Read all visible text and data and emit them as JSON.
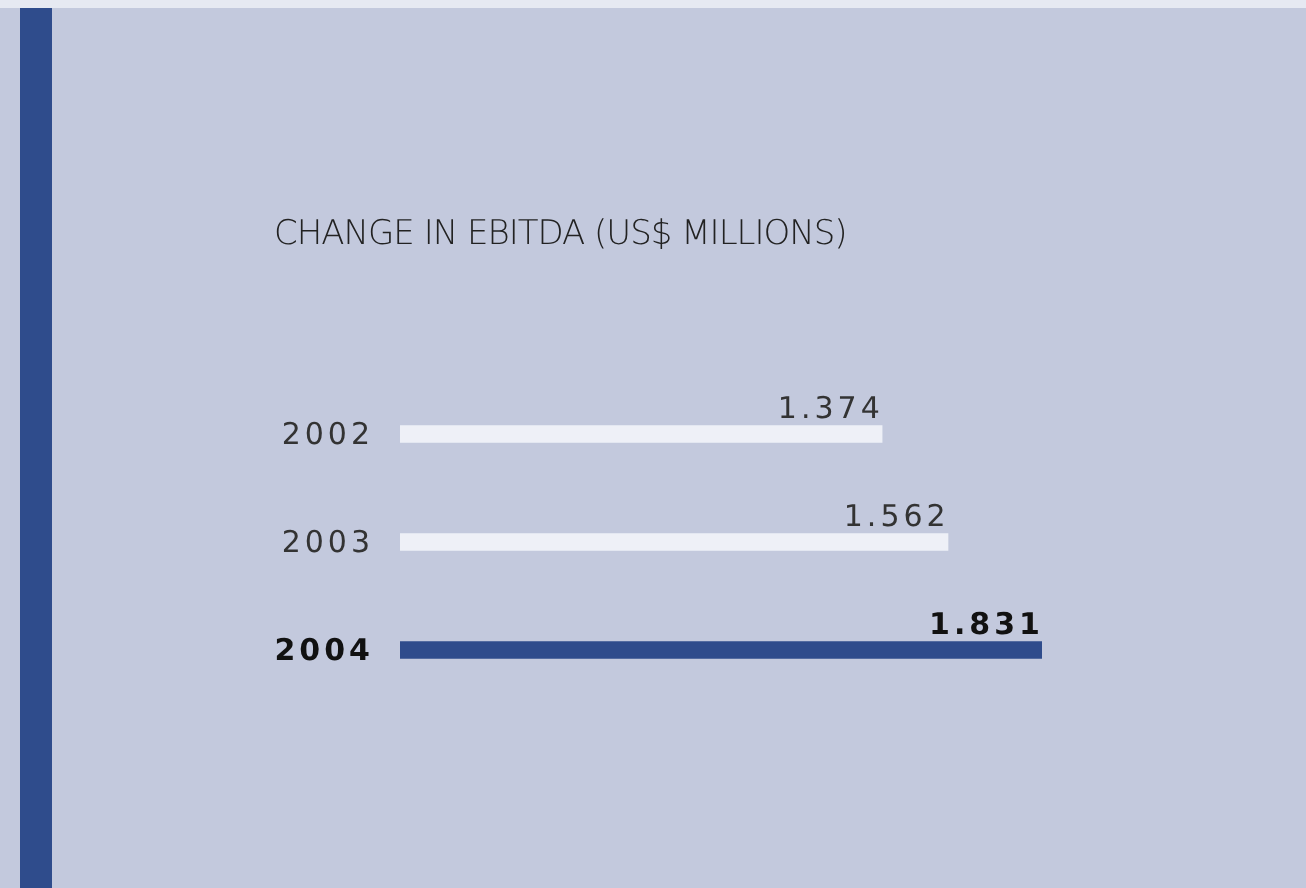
{
  "chart_data": {
    "type": "bar",
    "orientation": "horizontal",
    "title": "CHANGE IN EBITDA (US$ MILLIONS)",
    "categories": [
      "2002",
      "2003",
      "2004"
    ],
    "values": [
      1374,
      1562,
      1831
    ],
    "value_labels": [
      "1.374",
      "1.562",
      "1.831"
    ],
    "colors": [
      "#eef0f7",
      "#eef0f7",
      "#2f4c8c"
    ]
  }
}
